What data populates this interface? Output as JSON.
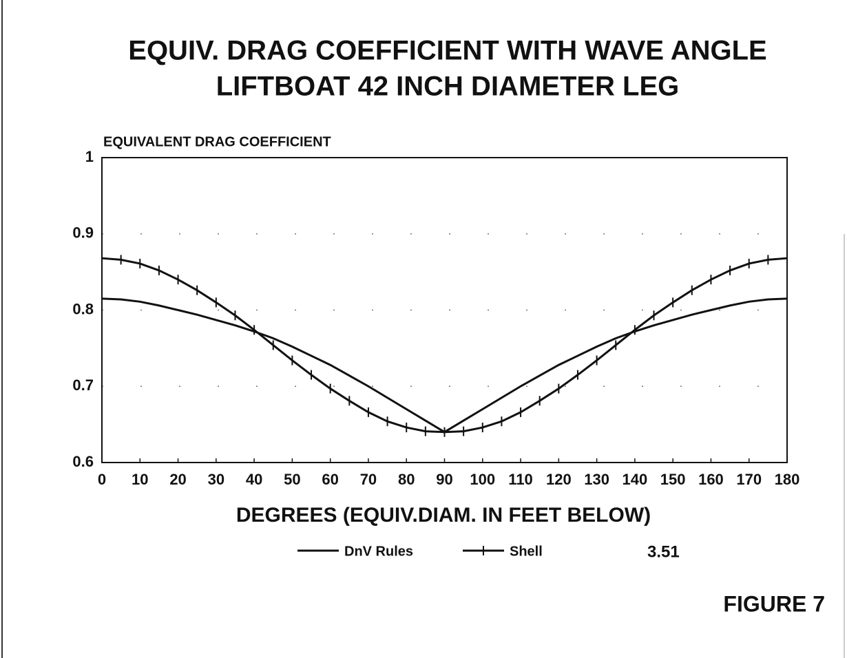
{
  "chart_data": {
    "type": "line",
    "title": "EQUIV. DRAG COEFFICIENT WITH WAVE ANGLE",
    "subtitle": "LIFTBOAT 42 INCH DIAMETER LEG",
    "y_label": "EQUIVALENT DRAG COEFFICIENT",
    "x_label": "DEGREES  (EQUIV.DIAM. IN FEET BELOW)",
    "annotations": [
      "3.51",
      "FIGURE 7"
    ],
    "x": [
      0,
      5,
      10,
      15,
      20,
      25,
      30,
      35,
      40,
      45,
      50,
      55,
      60,
      65,
      70,
      75,
      80,
      85,
      90,
      95,
      100,
      105,
      110,
      115,
      120,
      125,
      130,
      135,
      140,
      145,
      150,
      155,
      160,
      165,
      170,
      175,
      180
    ],
    "series": [
      {
        "name": "DnV Rules",
        "color": "#111111",
        "marker": false,
        "values": [
          0.815,
          0.814,
          0.811,
          0.806,
          0.8,
          0.794,
          0.787,
          0.78,
          0.772,
          0.763,
          0.752,
          0.74,
          0.728,
          0.714,
          0.7,
          0.685,
          0.67,
          0.655,
          0.64,
          0.655,
          0.67,
          0.685,
          0.7,
          0.714,
          0.728,
          0.74,
          0.752,
          0.763,
          0.772,
          0.78,
          0.787,
          0.794,
          0.8,
          0.806,
          0.811,
          0.814,
          0.815
        ]
      },
      {
        "name": "Shell",
        "color": "#111111",
        "marker": true,
        "values": [
          0.868,
          0.866,
          0.861,
          0.852,
          0.84,
          0.826,
          0.81,
          0.793,
          0.774,
          0.754,
          0.734,
          0.715,
          0.697,
          0.681,
          0.666,
          0.654,
          0.646,
          0.641,
          0.64,
          0.641,
          0.646,
          0.654,
          0.666,
          0.681,
          0.697,
          0.715,
          0.734,
          0.754,
          0.774,
          0.793,
          0.81,
          0.826,
          0.84,
          0.852,
          0.861,
          0.866,
          0.868
        ]
      }
    ],
    "xlim": [
      0,
      180
    ],
    "xticks": [
      0,
      10,
      20,
      30,
      40,
      50,
      60,
      70,
      80,
      90,
      100,
      110,
      120,
      130,
      140,
      150,
      160,
      170,
      180
    ],
    "ylim": [
      0.6,
      1
    ],
    "yticks": [
      0.6,
      0.7,
      0.8,
      0.9,
      1
    ],
    "grid": true,
    "legend": "bottom"
  }
}
